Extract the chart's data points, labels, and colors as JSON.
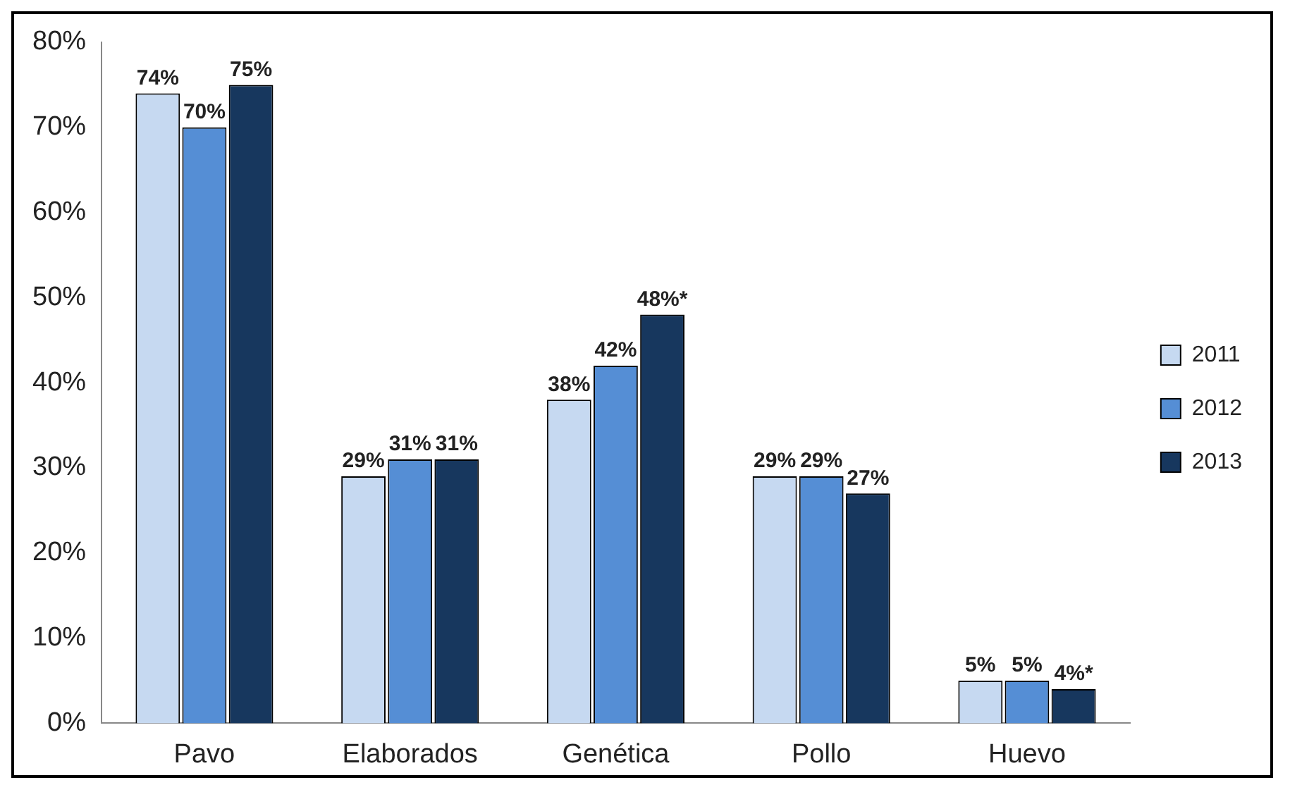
{
  "chart_data": {
    "type": "bar",
    "categories": [
      "Pavo",
      "Elaborados",
      "Genética",
      "Pollo",
      "Huevo"
    ],
    "series": [
      {
        "name": "2011",
        "color": "#c6d9f1",
        "values": [
          74,
          29,
          38,
          29,
          5
        ],
        "value_labels": [
          "74%",
          "29%",
          "38%",
          "29%",
          "5%"
        ]
      },
      {
        "name": "2012",
        "color": "#558ed5",
        "values": [
          70,
          31,
          42,
          29,
          5
        ],
        "value_labels": [
          "70%",
          "31%",
          "42%",
          "29%",
          "5%"
        ]
      },
      {
        "name": "2013",
        "color": "#17375e",
        "values": [
          75,
          31,
          48,
          27,
          4
        ],
        "value_labels": [
          "75%",
          "31%",
          "48%*",
          "27%",
          "4%*"
        ]
      }
    ],
    "ylim": [
      0,
      80
    ],
    "yticks": [
      {
        "value": 0,
        "label": "0%"
      },
      {
        "value": 10,
        "label": "10%"
      },
      {
        "value": 20,
        "label": "20%"
      },
      {
        "value": 30,
        "label": "30%"
      },
      {
        "value": 40,
        "label": "40%"
      },
      {
        "value": 50,
        "label": "50%"
      },
      {
        "value": 60,
        "label": "60%"
      },
      {
        "value": 70,
        "label": "70%"
      },
      {
        "value": 80,
        "label": "80%"
      }
    ],
    "grid": false,
    "legend": "right"
  }
}
